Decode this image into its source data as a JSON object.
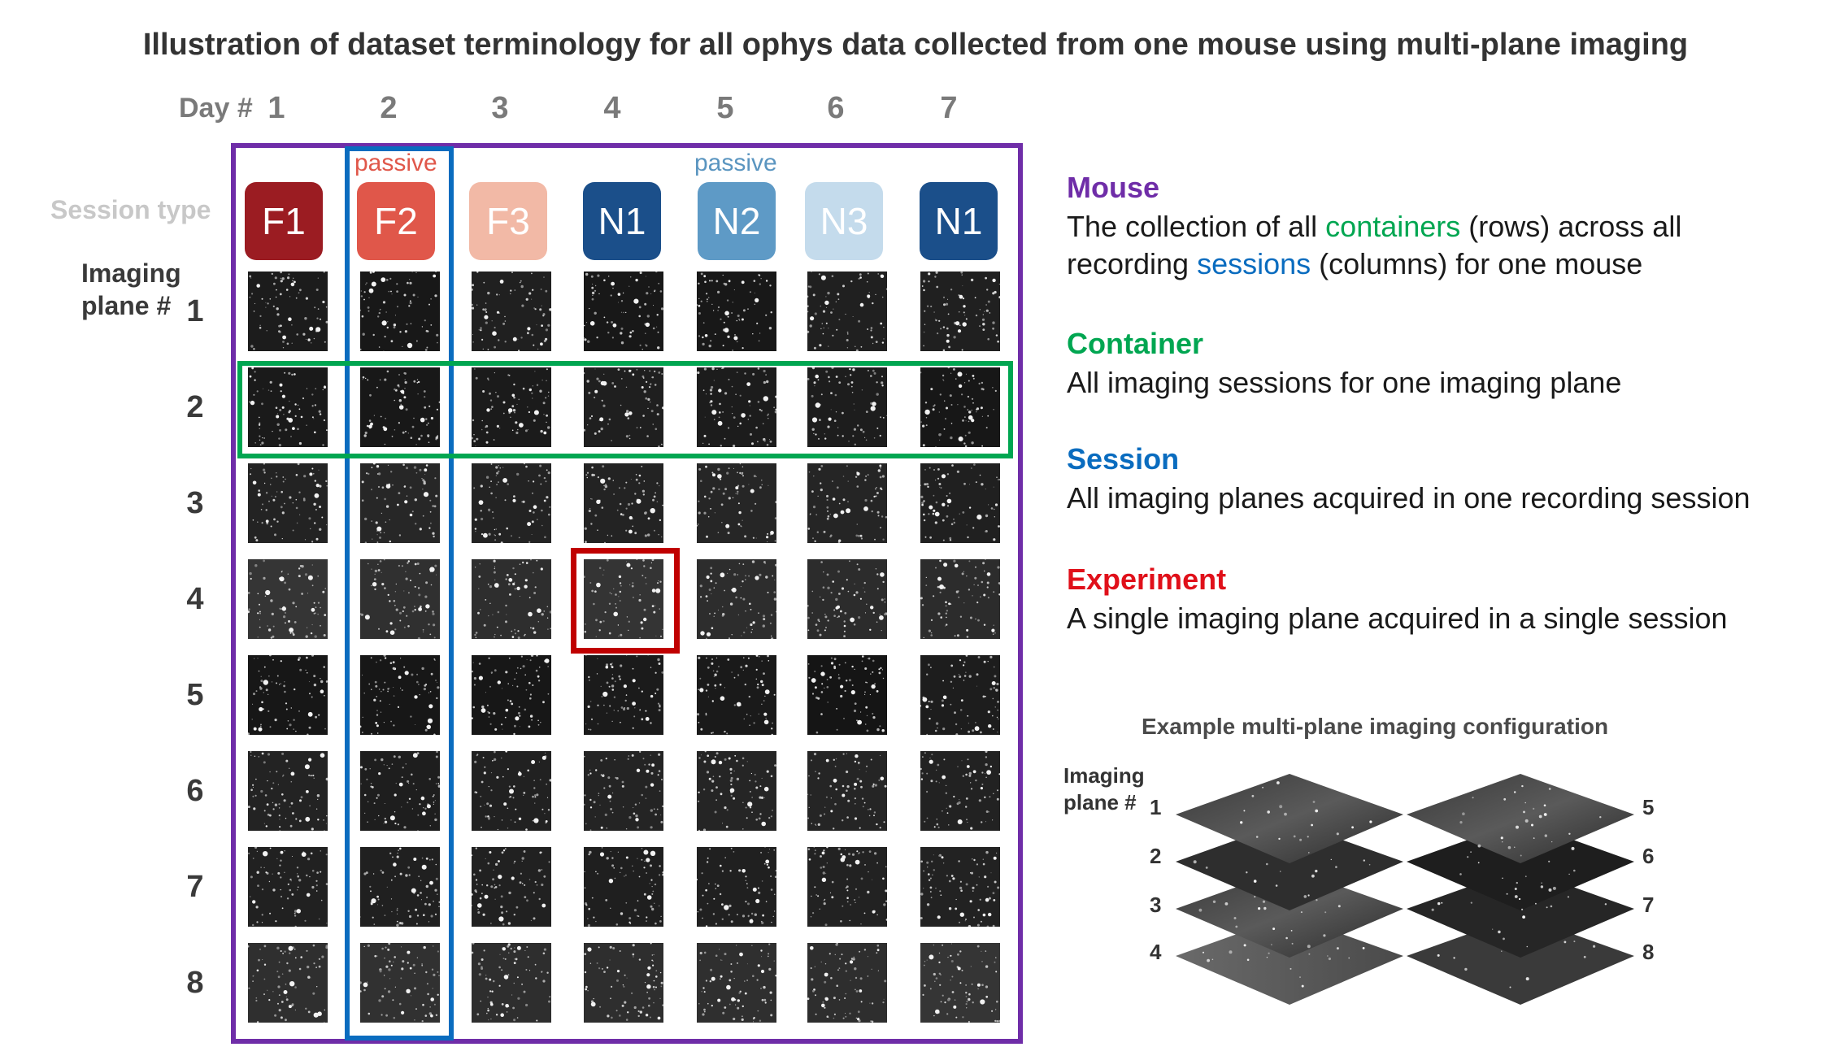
{
  "title": "Illustration of dataset terminology for all ophys data collected from one mouse using multi-plane imaging",
  "day_label": "Day #",
  "days": [
    "1",
    "2",
    "3",
    "4",
    "5",
    "6",
    "7"
  ],
  "passive_labels": [
    {
      "text": "passive",
      "color": "#e0574a"
    },
    {
      "text": "passive",
      "color": "#5a95c0"
    }
  ],
  "session_type_label": "Session type",
  "sessions": [
    {
      "label": "F1",
      "color": "#9b1c22"
    },
    {
      "label": "F2",
      "color": "#e0574a"
    },
    {
      "label": "F3",
      "color": "#f2b9a6"
    },
    {
      "label": "N1",
      "color": "#1b4f8a"
    },
    {
      "label": "N2",
      "color": "#5e9ac6"
    },
    {
      "label": "N3",
      "color": "#c4dbec"
    },
    {
      "label": "N1",
      "color": "#1b4f8a"
    }
  ],
  "imaging_plane_label": [
    "Imaging",
    "plane #"
  ],
  "planes": [
    "1",
    "2",
    "3",
    "4",
    "5",
    "6",
    "7",
    "8"
  ],
  "frame_colors": {
    "mouse": "#6f2da8",
    "container": "#00a651",
    "session": "#0a6cbf",
    "experiment": "#c00000"
  },
  "definitions": {
    "mouse": {
      "title": "Mouse",
      "line1_pre": "The collection of all ",
      "line1_accent": "containers",
      "line1_post": " (rows) across all",
      "line2_pre": "recording ",
      "line2_accent": "sessions",
      "line2_post": " (columns) for one mouse"
    },
    "container": {
      "title": "Container",
      "text": "All imaging sessions for one imaging plane"
    },
    "session": {
      "title": "Session",
      "text": "All imaging planes acquired in one recording session"
    },
    "experiment": {
      "title": "Experiment",
      "text": "A single imaging plane acquired in a single session"
    }
  },
  "definition_colors": {
    "mouse": "#6f2da8",
    "container": "#00a651",
    "session": "#0a6cbf",
    "experiment": "#e0101a"
  },
  "example": {
    "title": "Example multi-plane imaging configuration",
    "plane_label": [
      "Imaging",
      "plane #"
    ],
    "left_planes": [
      "1",
      "2",
      "3",
      "4"
    ],
    "right_planes": [
      "5",
      "6",
      "7",
      "8"
    ]
  }
}
